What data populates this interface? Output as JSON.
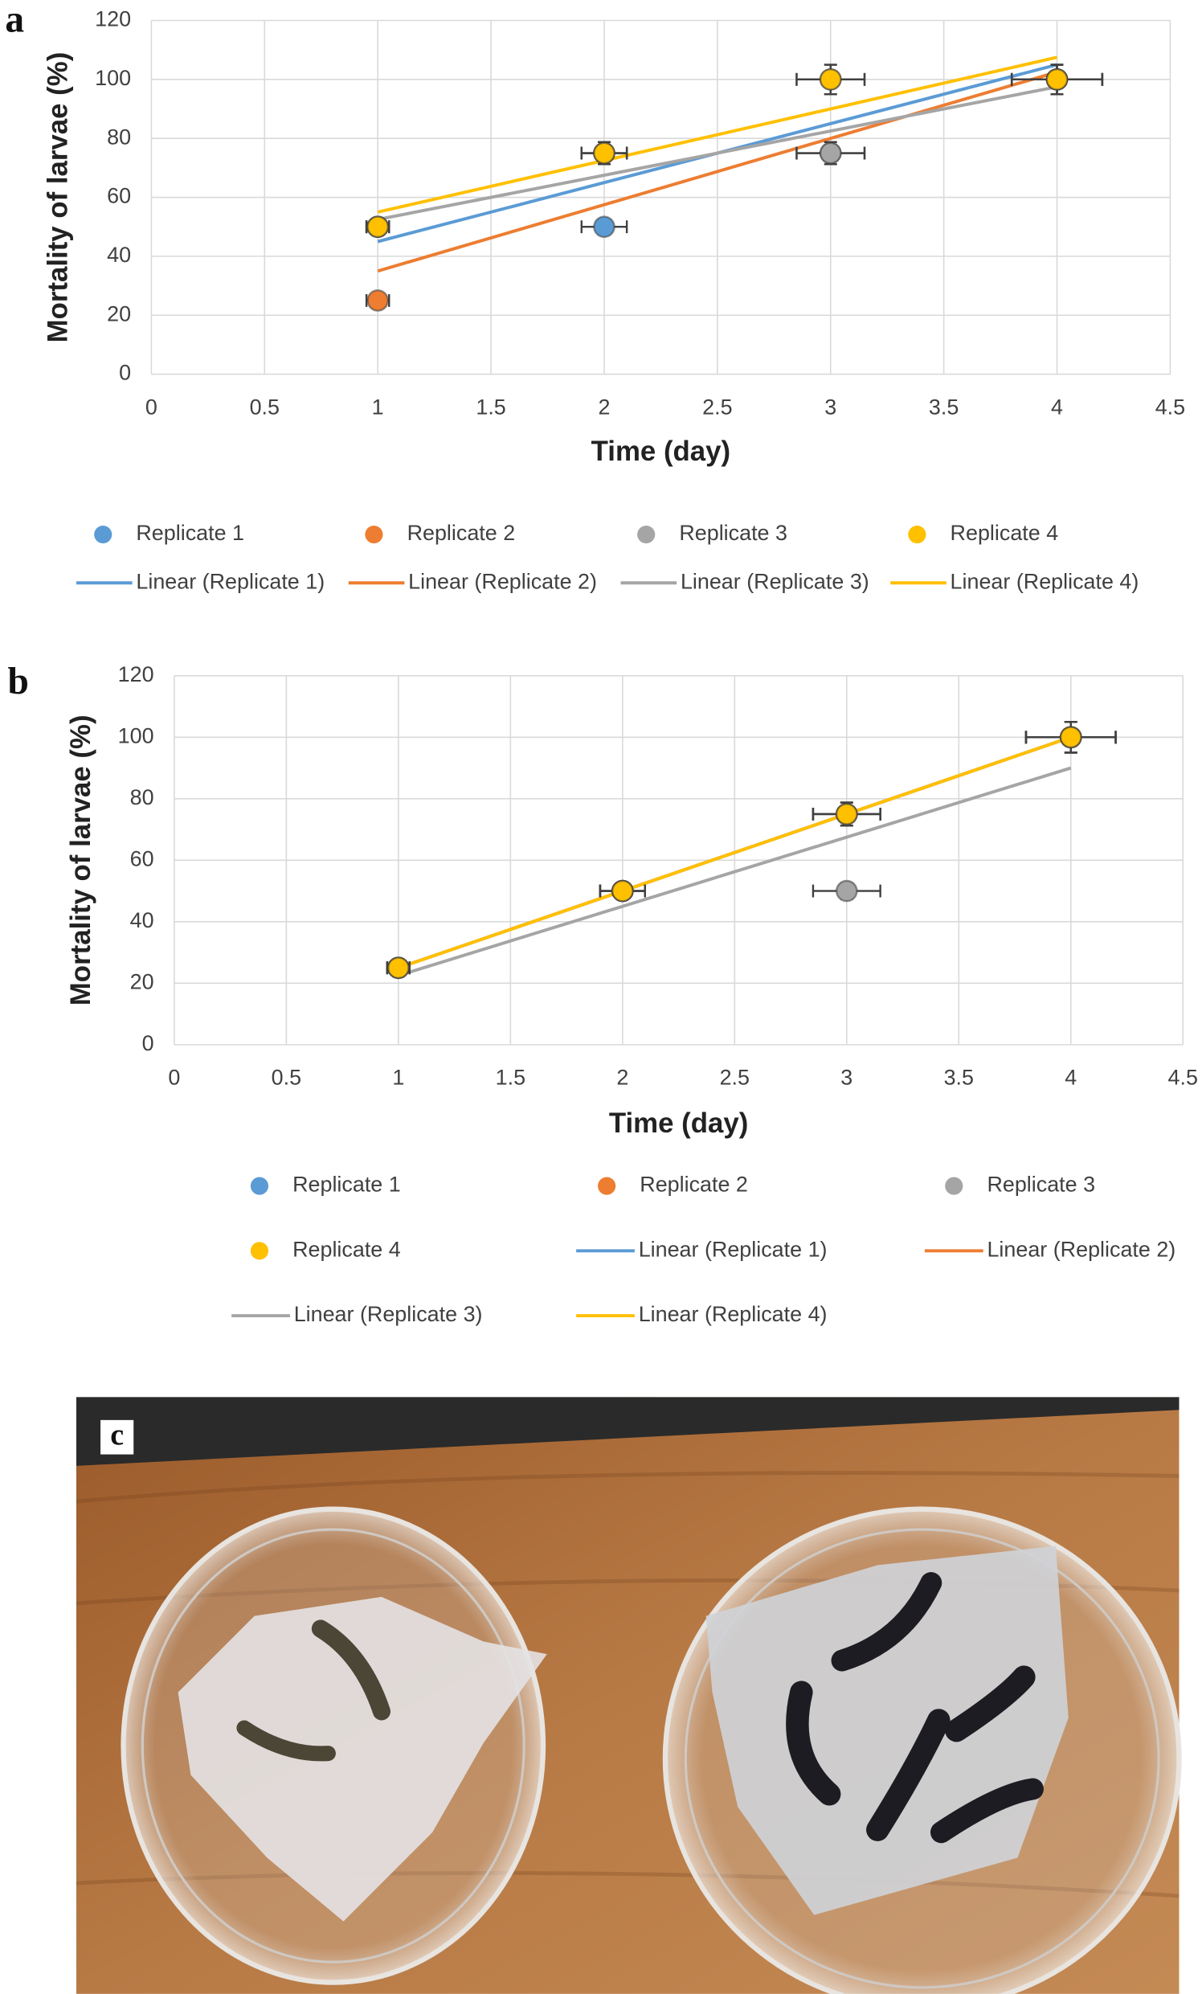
{
  "chart_data": [
    {
      "type": "scatter",
      "panel_label": "a",
      "xlabel": "Time (day)",
      "ylabel": "Mortality of larvae (%)",
      "x": [
        1,
        2,
        3,
        4
      ],
      "xlim": [
        0,
        4.5
      ],
      "xticks": [
        0,
        0.5,
        1,
        1.5,
        2,
        2.5,
        3,
        3.5,
        4,
        4.5
      ],
      "ylim": [
        0,
        120
      ],
      "yticks": [
        0,
        20,
        40,
        60,
        80,
        100,
        120
      ],
      "grid": true,
      "trendline": "linear",
      "series": [
        {
          "name": "Replicate 1",
          "trendline_name": "Linear (Replicate 1)",
          "color": "#5b9bd5",
          "values": [
            50,
            50,
            100,
            100
          ],
          "xerr": [
            0.05,
            0.1,
            0.15,
            0.2
          ],
          "yerr": [
            2.5,
            2.5,
            5,
            5
          ]
        },
        {
          "name": "Replicate 2",
          "trendline_name": "Linear (Replicate 2)",
          "color": "#ed7d31",
          "values": [
            25,
            75,
            75,
            100
          ],
          "xerr": [
            0.05,
            0.1,
            0.15,
            0.2
          ],
          "yerr": [
            1.25,
            3.75,
            3.75,
            5
          ]
        },
        {
          "name": "Replicate 3",
          "trendline_name": "Linear (Replicate 3)",
          "color": "#a5a5a5",
          "values": [
            50,
            75,
            75,
            100
          ],
          "xerr": [
            0.05,
            0.1,
            0.15,
            0.2
          ],
          "yerr": [
            2.5,
            3.75,
            3.75,
            5
          ]
        },
        {
          "name": "Replicate 4",
          "trendline_name": "Linear (Replicate 4)",
          "color": "#ffc000",
          "values": [
            50,
            75,
            100,
            100
          ],
          "xerr": [
            0.05,
            0.1,
            0.15,
            0.2
          ],
          "yerr": [
            2.5,
            3.75,
            5,
            5
          ]
        }
      ]
    },
    {
      "type": "scatter",
      "panel_label": "b",
      "xlabel": "Time (day)",
      "ylabel": "Mortality of larvae (%)",
      "x": [
        1,
        2,
        3,
        4
      ],
      "xlim": [
        0,
        4.5
      ],
      "xticks": [
        0,
        0.5,
        1,
        1.5,
        2,
        2.5,
        3,
        3.5,
        4,
        4.5
      ],
      "ylim": [
        0,
        120
      ],
      "yticks": [
        0,
        20,
        40,
        60,
        80,
        100,
        120
      ],
      "grid": true,
      "trendline": "linear",
      "series": [
        {
          "name": "Replicate 1",
          "trendline_name": "Linear (Replicate 1)",
          "color": "#5b9bd5",
          "values": [
            25,
            50,
            75,
            100
          ],
          "xerr": [
            0.05,
            0.1,
            0.15,
            0.2
          ],
          "yerr": [
            1.25,
            2.5,
            3.75,
            5
          ]
        },
        {
          "name": "Replicate 2",
          "trendline_name": "Linear (Replicate 2)",
          "color": "#ed7d31",
          "values": [
            25,
            50,
            75,
            100
          ],
          "xerr": [
            0.05,
            0.1,
            0.15,
            0.2
          ],
          "yerr": [
            1.25,
            2.5,
            3.75,
            5
          ]
        },
        {
          "name": "Replicate 3",
          "trendline_name": "Linear (Replicate 3)",
          "color": "#a5a5a5",
          "values": [
            25,
            50,
            50,
            100
          ],
          "xerr": [
            0.05,
            0.1,
            0.15,
            0.2
          ],
          "yerr": [
            1.25,
            2.5,
            2.5,
            5
          ]
        },
        {
          "name": "Replicate 4",
          "trendline_name": "Linear (Replicate 4)",
          "color": "#ffc000",
          "values": [
            25,
            50,
            75,
            100
          ],
          "xerr": [
            0.05,
            0.1,
            0.15,
            0.2
          ],
          "yerr": [
            1.25,
            2.5,
            3.75,
            5
          ]
        }
      ]
    }
  ],
  "photo": {
    "label": "c"
  }
}
